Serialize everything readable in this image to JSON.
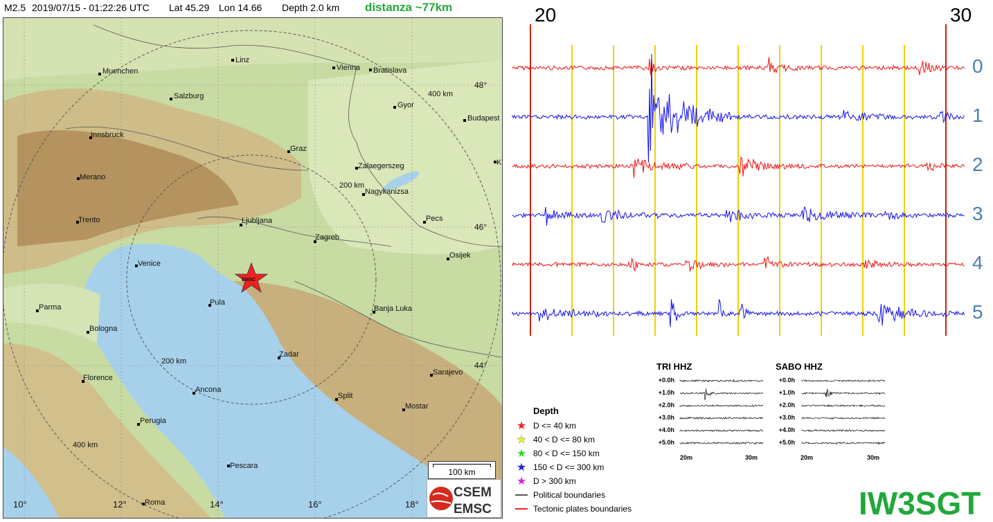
{
  "header": {
    "magnitude": "M2.5",
    "datetime": "2019/07/15 - 01:22:26 UTC",
    "lat": "Lat 45.29",
    "lon": "Lon 14.66",
    "depth": "Depth 2.0 km",
    "distance": "distanza ~77km"
  },
  "map": {
    "cities": [
      {
        "name": "Linz"
      },
      {
        "name": "Vienna"
      },
      {
        "name": "Bratislava"
      },
      {
        "name": "Muenchen"
      },
      {
        "name": "Salzburg"
      },
      {
        "name": "Gyor"
      },
      {
        "name": "Budapest"
      },
      {
        "name": "Innsbruck"
      },
      {
        "name": "Graz"
      },
      {
        "name": "Zalaegerszeg"
      },
      {
        "name": "Merano"
      },
      {
        "name": "Nagykanizsa"
      },
      {
        "name": "Trento"
      },
      {
        "name": "Ljubljana"
      },
      {
        "name": "Pecs"
      },
      {
        "name": "Zagreb"
      },
      {
        "name": "Osijek"
      },
      {
        "name": "Venice"
      },
      {
        "name": "Pula"
      },
      {
        "name": "Parma"
      },
      {
        "name": "Banja Luka"
      },
      {
        "name": "Bologna"
      },
      {
        "name": "Zadar"
      },
      {
        "name": "Sarajevo"
      },
      {
        "name": "Florence"
      },
      {
        "name": "Ancona"
      },
      {
        "name": "Split"
      },
      {
        "name": "Mostar"
      },
      {
        "name": "Perugia"
      },
      {
        "name": "Pescara"
      },
      {
        "name": "Roma"
      },
      {
        "name": "K"
      }
    ],
    "lat_labels": [
      "48°",
      "46°",
      "44°"
    ],
    "lon_labels": [
      "10°",
      "12°",
      "14°",
      "16°",
      "18°"
    ],
    "ring_labels": [
      "400 km",
      "200 km",
      "200 km",
      "400 km"
    ],
    "epicenter_label": "EMSC",
    "scale_label": "100 km",
    "logo_top": "CSEM",
    "logo_bottom": "EMSC"
  },
  "seismogram": {
    "time_start": "20",
    "time_end": "30",
    "channels": [
      "0",
      "1",
      "2",
      "3",
      "4",
      "5"
    ],
    "colors": {
      "red": "#ee1111",
      "blue": "#1111ee",
      "marker": "#f2d000",
      "minute": "#cc2200"
    }
  },
  "legend": {
    "title": "Depth",
    "items": [
      {
        "label": "D <= 40 km",
        "color": "#ee2222"
      },
      {
        "label": "40 < D <= 80 km",
        "color": "#f4f400"
      },
      {
        "label": "80 < D <= 150 km",
        "color": "#22dd22"
      },
      {
        "label": "150 < D <= 300 km",
        "color": "#2222dd"
      },
      {
        "label": "D > 300 km",
        "color": "#dd22dd"
      }
    ],
    "political": "Political boundaries",
    "tectonic": "Tectonic plates boundaries"
  },
  "stations": [
    {
      "name": "TRI HHZ",
      "hours": [
        "+0.0h",
        "+1.0h",
        "+2.0h",
        "+3.0h",
        "+4.0h",
        "+5.0h"
      ],
      "x_start": "20m",
      "x_end": "30m"
    },
    {
      "name": "SABO HHZ",
      "hours": [
        "+0.0h",
        "+1.0h",
        "+2.0h",
        "+3.0h",
        "+4.0h",
        "+5.0h"
      ],
      "x_start": "20m",
      "x_end": "30m"
    }
  ],
  "callsign": "IW3SGT"
}
